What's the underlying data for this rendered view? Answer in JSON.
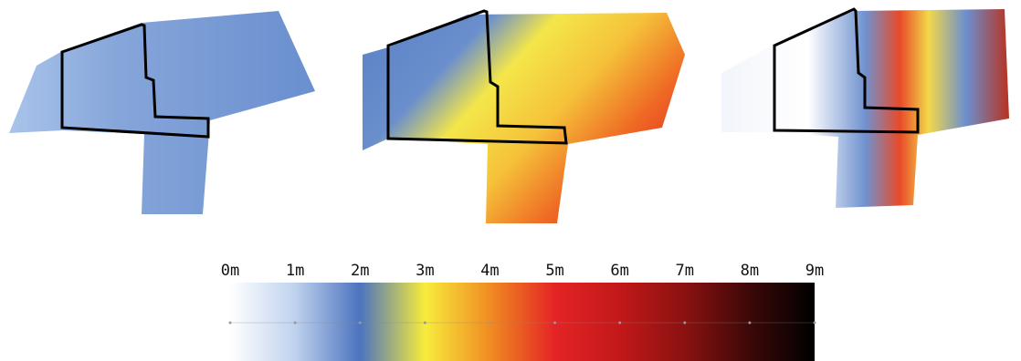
{
  "colorbar": {
    "lim": [
      0,
      9
    ],
    "ticks": [
      {
        "value": 0,
        "label": "0m"
      },
      {
        "value": 1,
        "label": "1m"
      },
      {
        "value": 2,
        "label": "2m"
      },
      {
        "value": 3,
        "label": "3m"
      },
      {
        "value": 4,
        "label": "4m"
      },
      {
        "value": 5,
        "label": "5m"
      },
      {
        "value": 6,
        "label": "6m"
      },
      {
        "value": 7,
        "label": "7m"
      },
      {
        "value": 8,
        "label": "8m"
      },
      {
        "value": 9,
        "label": "9m"
      }
    ],
    "colormap": [
      {
        "value": 0,
        "color": "#ffffff"
      },
      {
        "value": 1,
        "color": "#bfd2ee"
      },
      {
        "value": 2,
        "color": "#4c73bf"
      },
      {
        "value": 3,
        "color": "#f8ec3c"
      },
      {
        "value": 4,
        "color": "#f08c22"
      },
      {
        "value": 5,
        "color": "#e42424"
      },
      {
        "value": 6,
        "color": "#c2181a"
      },
      {
        "value": 7,
        "color": "#8a1210"
      },
      {
        "value": 8,
        "color": "#3c0808"
      },
      {
        "value": 9,
        "color": "#000000"
      }
    ]
  }
}
